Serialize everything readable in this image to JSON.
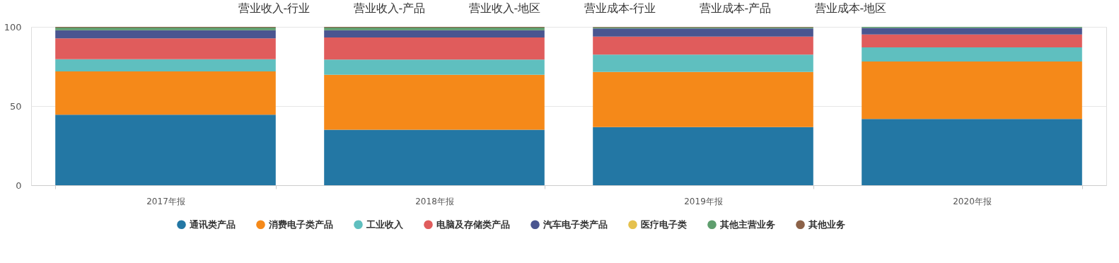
{
  "chart_data": {
    "type": "bar",
    "stacked": true,
    "categories": [
      "2017年报",
      "2018年报",
      "2019年报",
      "2020年报"
    ],
    "series": [
      {
        "name": "通讯类产品",
        "color": "#2377a4",
        "values": [
          44.5,
          35.1,
          36.7,
          41.8
        ]
      },
      {
        "name": "消费电子类产品",
        "color": "#f58919",
        "values": [
          27.4,
          34.6,
          34.8,
          36.3
        ]
      },
      {
        "name": "工业收入",
        "color": "#5fbfbf",
        "values": [
          7.7,
          9.7,
          11.0,
          8.9
        ]
      },
      {
        "name": "电脑及存储类产品",
        "color": "#e05c5c",
        "values": [
          13.2,
          13.9,
          11.4,
          8.2
        ]
      },
      {
        "name": "汽车电子类产品",
        "color": "#4a5590",
        "values": [
          5.1,
          4.6,
          5.1,
          4.1
        ]
      },
      {
        "name": "医疗电子类",
        "color": "#e5c14d",
        "values": [
          null,
          null,
          null,
          null
        ]
      },
      {
        "name": "其他主营业务",
        "color": "#5f9e6e",
        "values": [
          1.6,
          1.6,
          0.7,
          0.7
        ]
      },
      {
        "name": "其他业务",
        "color": "#8c6248",
        "values": [
          0.5,
          0.5,
          0.3,
          null
        ]
      }
    ],
    "ylim": [
      0,
      100
    ],
    "yticks": [
      0,
      50,
      100
    ],
    "grid": "y",
    "legend": "bottom",
    "annotations": [
      "营业收入-行业",
      "营业收入-产品",
      "营业收入-地区",
      "营业成本-行业",
      "营业成本-产品",
      "营业成本-地区"
    ]
  }
}
